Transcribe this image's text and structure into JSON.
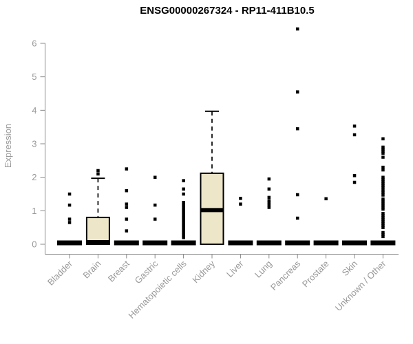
{
  "chart_data": {
    "type": "boxplot",
    "title": "ENSG00000267324 - RP11-411B10.5",
    "ylabel": "Expression",
    "xlabel": "",
    "ylim": [
      0,
      6.6
    ],
    "yticks": [
      0,
      1,
      2,
      3,
      4,
      5,
      6
    ],
    "grid": false,
    "legend": "none",
    "colors": {
      "box_fill": "#EDE6C9",
      "box_stroke": "#000000",
      "median": "#000000",
      "outlier": "#000000",
      "axis": "#888888",
      "tick_label": "#999999",
      "title": "#000000"
    },
    "categories": [
      "Bladder",
      "Brain",
      "Breast",
      "Gastric",
      "Hematopoietic cells",
      "Kidney",
      "Liver",
      "Lung",
      "Pancreas",
      "Prostate",
      "Skin",
      "Unknown / Other"
    ],
    "series": [
      {
        "name": "Bladder",
        "q1": 0,
        "median": 0,
        "q3": 0,
        "whisker_low": 0,
        "whisker_high": 0,
        "outliers": [
          1.5,
          1.17,
          0.75,
          0.65
        ]
      },
      {
        "name": "Brain",
        "q1": 0,
        "median": 0.02,
        "q3": 0.8,
        "whisker_low": 0,
        "whisker_high": 1.97,
        "outliers": [
          2.1,
          2.2
        ]
      },
      {
        "name": "Breast",
        "q1": 0,
        "median": 0,
        "q3": 0,
        "whisker_low": 0,
        "whisker_high": 0,
        "outliers": [
          2.25,
          1.6,
          1.2,
          1.1,
          0.75,
          0.4
        ]
      },
      {
        "name": "Gastric",
        "q1": 0,
        "median": 0,
        "q3": 0,
        "whisker_low": 0,
        "whisker_high": 0,
        "outliers": [
          2.0,
          1.17,
          0.75
        ]
      },
      {
        "name": "Hematopoietic cells",
        "q1": 0,
        "median": 0,
        "q3": 0,
        "whisker_low": 0,
        "whisker_high": 0,
        "outliers": [
          1.9,
          1.65,
          1.5,
          1.25,
          1.2,
          1.15,
          1.1,
          1.05,
          1.0,
          0.95,
          0.9,
          0.85,
          0.8,
          0.75,
          0.7,
          0.65,
          0.6,
          0.55,
          0.5,
          0.45,
          0.4,
          0.35,
          0.3,
          0.25,
          0.2
        ]
      },
      {
        "name": "Kidney",
        "q1": 0,
        "median": 1.02,
        "q3": 2.12,
        "whisker_low": 0,
        "whisker_high": 3.97,
        "outliers": []
      },
      {
        "name": "Liver",
        "q1": 0,
        "median": 0,
        "q3": 0,
        "whisker_low": 0,
        "whisker_high": 0,
        "outliers": [
          1.37,
          1.2
        ]
      },
      {
        "name": "Lung",
        "q1": 0,
        "median": 0,
        "q3": 0,
        "whisker_low": 0,
        "whisker_high": 0,
        "outliers": [
          1.95,
          1.65,
          1.4,
          1.3,
          1.24,
          1.17,
          1.1
        ]
      },
      {
        "name": "Pancreas",
        "q1": 0,
        "median": 0,
        "q3": 0,
        "whisker_low": 0,
        "whisker_high": 0,
        "outliers": [
          6.43,
          4.55,
          3.45,
          1.48,
          0.78
        ]
      },
      {
        "name": "Prostate",
        "q1": 0,
        "median": 0,
        "q3": 0,
        "whisker_low": 0,
        "whisker_high": 0,
        "outliers": [
          1.36
        ]
      },
      {
        "name": "Skin",
        "q1": 0,
        "median": 0,
        "q3": 0,
        "whisker_low": 0,
        "whisker_high": 0,
        "outliers": [
          3.53,
          3.27,
          2.05,
          1.85
        ]
      },
      {
        "name": "Unknown / Other",
        "q1": 0,
        "median": 0,
        "q3": 0,
        "whisker_low": 0,
        "whisker_high": 0,
        "outliers": [
          3.15,
          2.9,
          2.84,
          2.78,
          2.72,
          2.6,
          2.3,
          2.22,
          2.0,
          1.94,
          1.88,
          1.82,
          1.76,
          1.7,
          1.62,
          1.55,
          1.47,
          1.35,
          1.29,
          1.23,
          1.17,
          1.11,
          1.05,
          0.92,
          0.86,
          0.8,
          0.74,
          0.68,
          0.62,
          0.56,
          0.5,
          0.35,
          0.29,
          0.23
        ]
      }
    ]
  }
}
